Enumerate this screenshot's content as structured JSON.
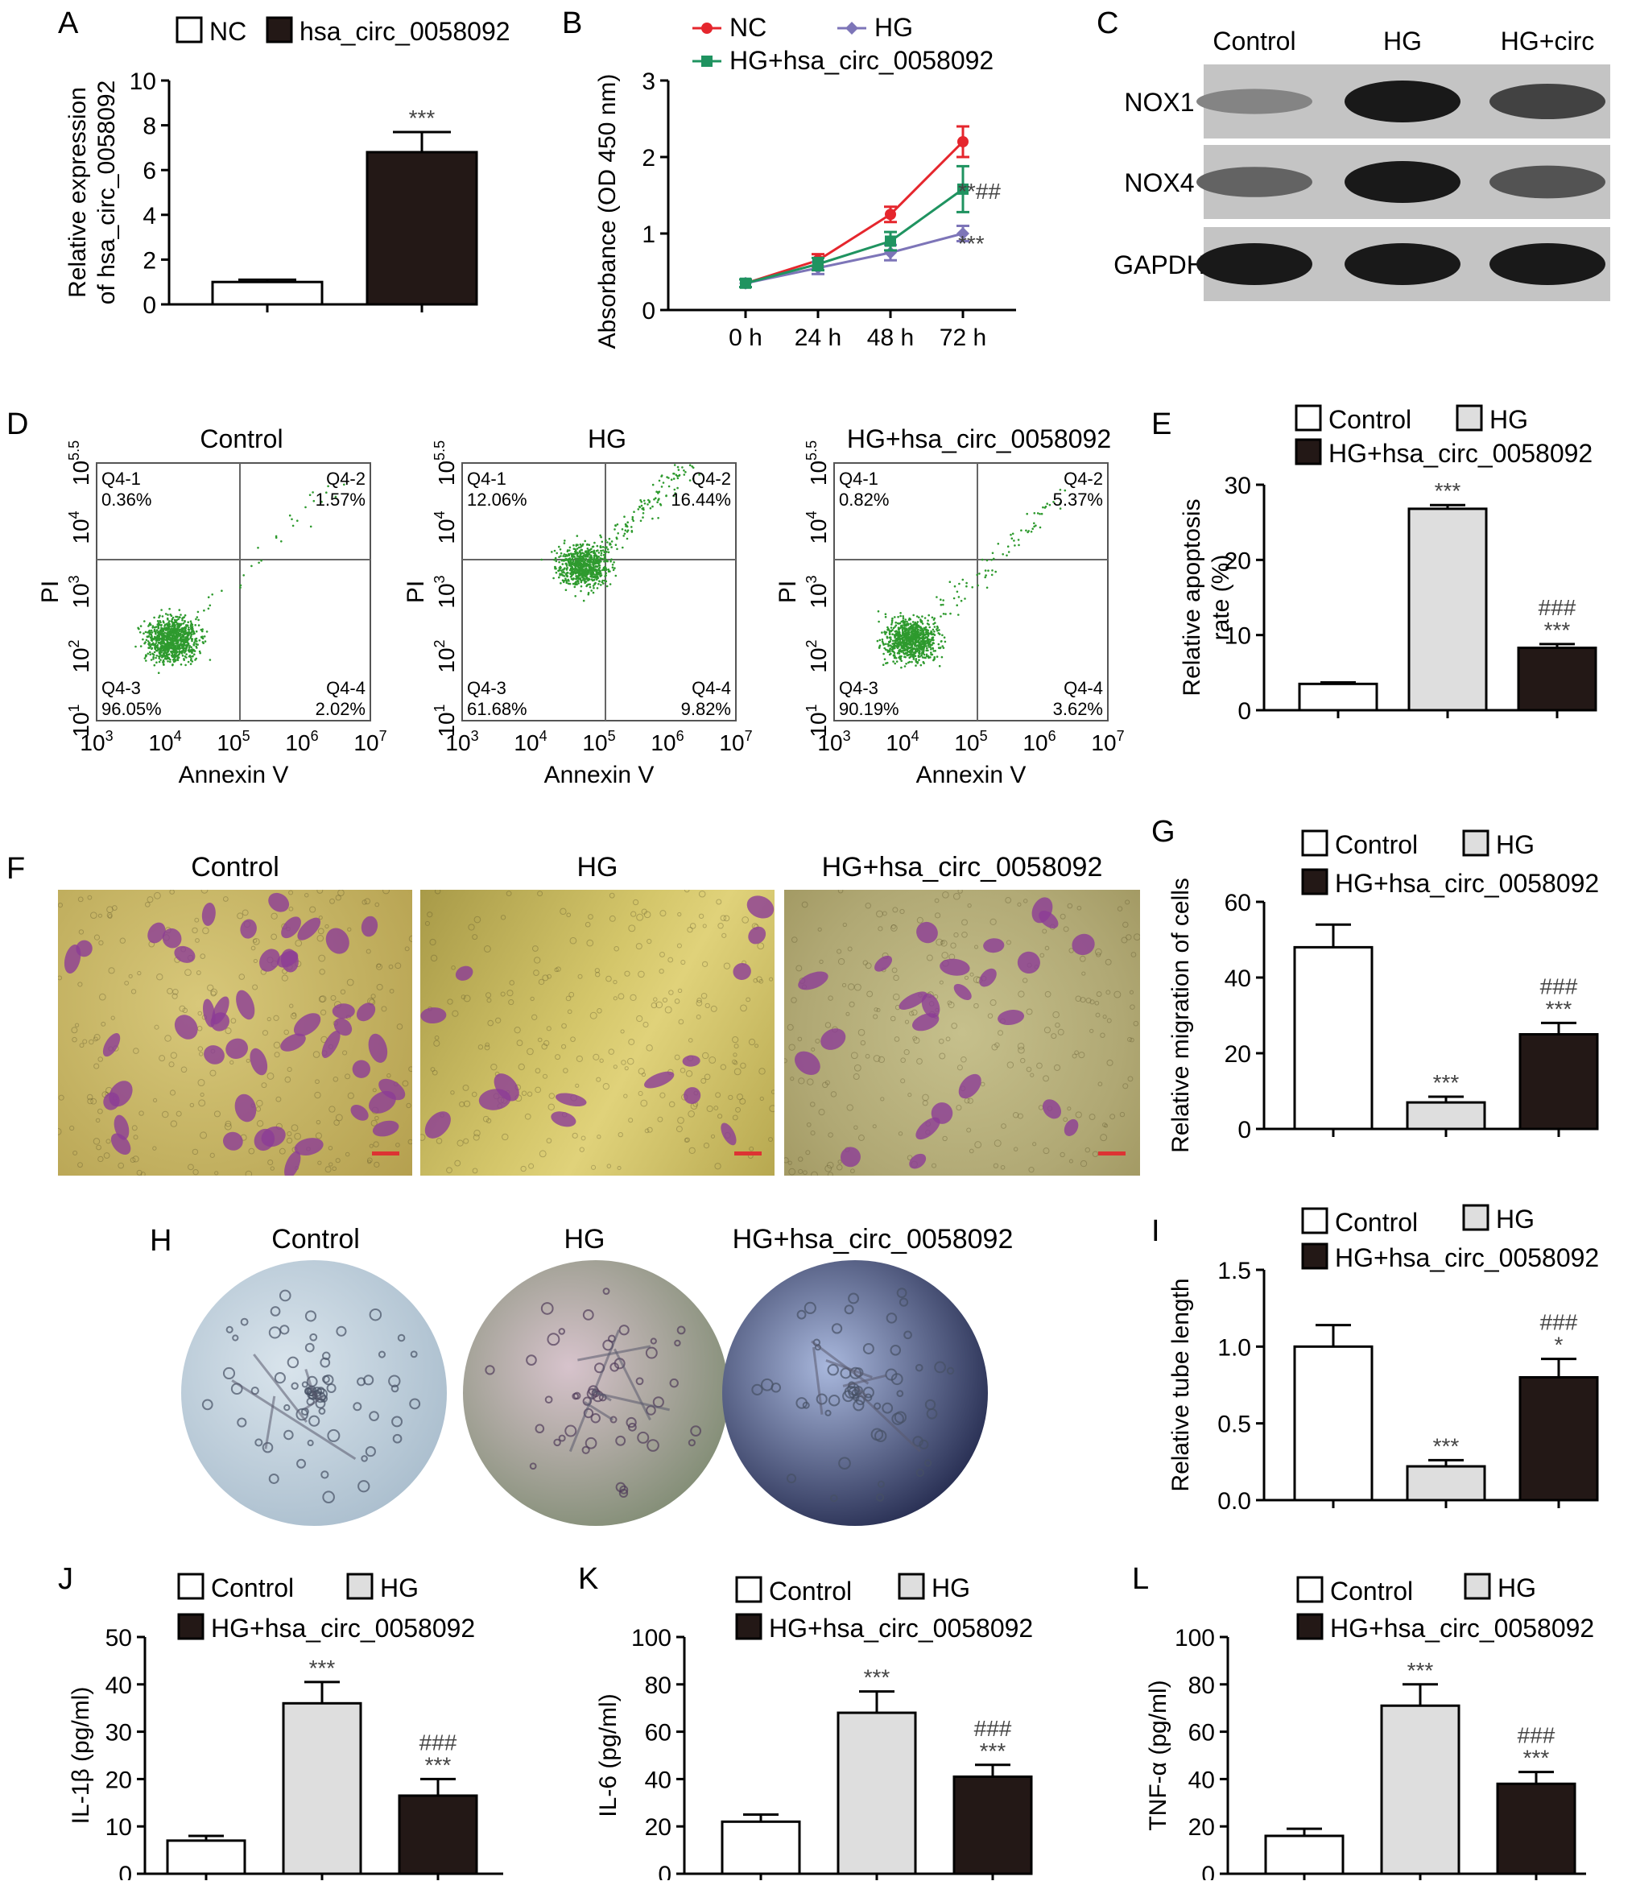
{
  "panel_letters": [
    "A",
    "B",
    "C",
    "D",
    "E",
    "F",
    "G",
    "H",
    "I",
    "J",
    "K",
    "L"
  ],
  "chart_data": [
    {
      "id": "A",
      "type": "bar",
      "categories": [
        "NC",
        "hsa_circ_0058092"
      ],
      "values": [
        1.0,
        6.8
      ],
      "errors": [
        0.1,
        0.9
      ],
      "colors": [
        "#ffffff",
        "#231816"
      ],
      "legend": [
        "NC",
        "hsa_circ_0058092"
      ],
      "ylabel": [
        "Relative expression",
        "of hsa_circ_0058092"
      ],
      "ylim": [
        0,
        10
      ],
      "yticks": [
        "0",
        "2",
        "4",
        "6",
        "8",
        "10"
      ],
      "annotations": [
        "",
        "***"
      ]
    },
    {
      "id": "B",
      "type": "line",
      "x": [
        "0 h",
        "24 h",
        "48 h",
        "72 h"
      ],
      "series": [
        {
          "name": "NC",
          "values": [
            0.35,
            0.65,
            1.25,
            2.2
          ],
          "errors": [
            0.05,
            0.08,
            0.1,
            0.2
          ],
          "color": "#e5262d"
        },
        {
          "name": "HG",
          "values": [
            0.35,
            0.55,
            0.75,
            1.0
          ],
          "errors": [
            0.05,
            0.08,
            0.1,
            0.1
          ],
          "color": "#7d75b8"
        },
        {
          "name": "HG+hsa_circ_0058092",
          "values": [
            0.35,
            0.6,
            0.9,
            1.58
          ],
          "errors": [
            0.05,
            0.08,
            0.12,
            0.3
          ],
          "color": "#1f9360"
        }
      ],
      "ylabel": "Absorbance (OD 450 nm)",
      "ylim": [
        0,
        3
      ],
      "yticks": [
        "0",
        "1",
        "2",
        "3"
      ],
      "annotations": [
        "**##",
        "***"
      ]
    },
    {
      "id": "E",
      "type": "bar",
      "categories": [
        "Control",
        "HG",
        "HG+hsa_circ_0058092"
      ],
      "values": [
        3.5,
        26.8,
        8.3
      ],
      "errors": [
        0.2,
        0.5,
        0.5
      ],
      "colors": [
        "#ffffff",
        "#dedede",
        "#231816"
      ],
      "legend": [
        "Control",
        "HG",
        "HG+hsa_circ_0058092"
      ],
      "ylabel": [
        "Relative apoptosis",
        "rate (%)"
      ],
      "ylim": [
        0,
        30
      ],
      "yticks": [
        "0",
        "10",
        "20",
        "30"
      ],
      "annotations": [
        "",
        "***",
        "###|***"
      ]
    },
    {
      "id": "G",
      "type": "bar",
      "categories": [
        "Control",
        "HG",
        "HG+hsa_circ_0058092"
      ],
      "values": [
        48,
        7,
        25
      ],
      "errors": [
        6,
        1.5,
        3
      ],
      "colors": [
        "#ffffff",
        "#dedede",
        "#231816"
      ],
      "legend": [
        "Control",
        "HG",
        "HG+hsa_circ_0058092"
      ],
      "ylabel": [
        "Relative migration of cells"
      ],
      "ylim": [
        0,
        60
      ],
      "yticks": [
        "0",
        "20",
        "40",
        "60"
      ],
      "annotations": [
        "",
        "***",
        "###|***"
      ]
    },
    {
      "id": "I",
      "type": "bar",
      "categories": [
        "Control",
        "HG",
        "HG+hsa_circ_0058092"
      ],
      "values": [
        1.0,
        0.22,
        0.8
      ],
      "errors": [
        0.14,
        0.04,
        0.12
      ],
      "colors": [
        "#ffffff",
        "#dedede",
        "#231816"
      ],
      "legend": [
        "Control",
        "HG",
        "HG+hsa_circ_0058092"
      ],
      "ylabel": [
        "Relative tube length"
      ],
      "ylim": [
        0,
        1.5
      ],
      "yticks": [
        "0.0",
        "0.5",
        "1.0",
        "1.5"
      ],
      "annotations": [
        "",
        "***",
        "###|*"
      ]
    },
    {
      "id": "J",
      "type": "bar",
      "categories": [
        "Control",
        "HG",
        "HG+hsa_circ_0058092"
      ],
      "values": [
        7,
        36,
        16.5
      ],
      "errors": [
        1,
        4.5,
        3.5
      ],
      "colors": [
        "#ffffff",
        "#dedede",
        "#231816"
      ],
      "legend": [
        "Control",
        "HG",
        "HG+hsa_circ_0058092"
      ],
      "ylabel": [
        "IL-1β (pg/ml)"
      ],
      "ylim": [
        0,
        50
      ],
      "yticks": [
        "0",
        "10",
        "20",
        "30",
        "40",
        "50"
      ],
      "annotations": [
        "",
        "***",
        "###|***"
      ]
    },
    {
      "id": "K",
      "type": "bar",
      "categories": [
        "Control",
        "HG",
        "HG+hsa_circ_0058092"
      ],
      "values": [
        22,
        68,
        41
      ],
      "errors": [
        3,
        9,
        5
      ],
      "colors": [
        "#ffffff",
        "#dedede",
        "#231816"
      ],
      "legend": [
        "Control",
        "HG",
        "HG+hsa_circ_0058092"
      ],
      "ylabel": [
        "IL-6 (pg/ml)"
      ],
      "ylim": [
        0,
        100
      ],
      "yticks": [
        "0",
        "20",
        "40",
        "60",
        "80",
        "100"
      ],
      "annotations": [
        "",
        "***",
        "###|***"
      ]
    },
    {
      "id": "L",
      "type": "bar",
      "categories": [
        "Control",
        "HG",
        "HG+hsa_circ_0058092"
      ],
      "values": [
        16,
        71,
        38
      ],
      "errors": [
        3,
        9,
        5
      ],
      "colors": [
        "#ffffff",
        "#dedede",
        "#231816"
      ],
      "legend": [
        "Control",
        "HG",
        "HG+hsa_circ_0058092"
      ],
      "ylabel": [
        "TNF-α (pg/ml)"
      ],
      "ylim": [
        0,
        100
      ],
      "yticks": [
        "0",
        "20",
        "40",
        "60",
        "80",
        "100"
      ],
      "annotations": [
        "",
        "***",
        "###|***"
      ]
    }
  ],
  "western_blot": {
    "columns": [
      "Control",
      "HG",
      "HG+circ"
    ],
    "rows": [
      {
        "label": "NOX1",
        "intensity": [
          0.35,
          1.0,
          0.75
        ]
      },
      {
        "label": "NOX4",
        "intensity": [
          0.55,
          1.0,
          0.65
        ]
      },
      {
        "label": "GAPDH",
        "intensity": [
          1.0,
          1.0,
          1.0
        ]
      }
    ]
  },
  "flow_cytometry": {
    "titles": [
      "Control",
      "HG",
      "HG+hsa_circ_0058092"
    ],
    "xlabel": "Annexin V",
    "ylabel": "PI",
    "xticks": [
      "3",
      "4",
      "5",
      "6",
      "7"
    ],
    "yticks": [
      "1",
      "2",
      "3",
      "4",
      "5.5"
    ],
    "tick_base": "10",
    "plots": [
      {
        "q1": "Q4-1",
        "q1v": "0.36%",
        "q2": "Q4-2",
        "q2v": "1.57%",
        "q3": "Q4-3",
        "q3v": "96.05%",
        "q4": "Q4-4",
        "q4v": "2.02%"
      },
      {
        "q1": "Q4-1",
        "q1v": "12.06%",
        "q2": "Q4-2",
        "q2v": "16.44%",
        "q3": "Q4-3",
        "q3v": "61.68%",
        "q4": "Q4-4",
        "q4v": "9.82%"
      },
      {
        "q1": "Q4-1",
        "q1v": "0.82%",
        "q2": "Q4-2",
        "q2v": "5.37%",
        "q3": "Q4-3",
        "q3v": "90.19%",
        "q4": "Q4-4",
        "q4v": "3.62%"
      }
    ],
    "dot_color": "#2e9a2e"
  },
  "migration_images": {
    "titles": [
      "Control",
      "HG",
      "HG+hsa_circ_0058092"
    ]
  },
  "tube_images": {
    "titles": [
      "Control",
      "HG",
      "HG+hsa_circ_0058092"
    ]
  }
}
